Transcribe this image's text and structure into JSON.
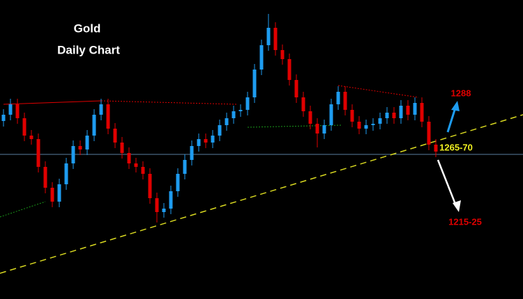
{
  "chart_data": {
    "type": "candlestick",
    "title": "Gold",
    "subtitle": "Daily Chart",
    "up_color": "#1e9cf0",
    "down_color": "#e00000",
    "ylim": [
      1215,
      1322.5
    ],
    "annotations": {
      "target_up": "1288",
      "support": "1265-70",
      "target_down": "1215-25"
    },
    "candles": [
      [
        1279,
        1283.25,
        1277,
        1281.25
      ],
      [
        1281.25,
        1287,
        1279.25,
        1285
      ],
      [
        1285,
        1287,
        1278,
        1280
      ],
      [
        1280,
        1282,
        1271.75,
        1273.75
      ],
      [
        1273.75,
        1275.75,
        1270.5,
        1272.5
      ],
      [
        1272.5,
        1274.5,
        1260.5,
        1262.5
      ],
      [
        1262.5,
        1264.5,
        1253,
        1255
      ],
      [
        1255,
        1257,
        1248,
        1250
      ],
      [
        1250,
        1258.25,
        1248,
        1256.25
      ],
      [
        1256.25,
        1265.75,
        1254.25,
        1263.75
      ],
      [
        1263.75,
        1272,
        1261.75,
        1270
      ],
      [
        1270,
        1272,
        1266.75,
        1268.75
      ],
      [
        1268.75,
        1275.75,
        1266.75,
        1273.75
      ],
      [
        1273.75,
        1283.25,
        1271.75,
        1281.25
      ],
      [
        1281.25,
        1287,
        1279.25,
        1285
      ],
      [
        1285,
        1287,
        1274.25,
        1276.25
      ],
      [
        1276.25,
        1278.25,
        1269.25,
        1271.25
      ],
      [
        1271.25,
        1273.25,
        1265.5,
        1267.5
      ],
      [
        1267.5,
        1269.5,
        1261.75,
        1263.75
      ],
      [
        1263.75,
        1265.75,
        1260.5,
        1262.5
      ],
      [
        1262.5,
        1264.5,
        1258,
        1260
      ],
      [
        1260,
        1262,
        1249.25,
        1251.25
      ],
      [
        1251.25,
        1253.25,
        1242.5,
        1246.25
      ],
      [
        1246.25,
        1249.5,
        1244.25,
        1247.5
      ],
      [
        1247.5,
        1255.75,
        1245.5,
        1253.75
      ],
      [
        1253.75,
        1262,
        1251.75,
        1260
      ],
      [
        1260,
        1267,
        1258,
        1265
      ],
      [
        1265,
        1272,
        1263,
        1270
      ],
      [
        1270,
        1274.5,
        1268,
        1272.5
      ],
      [
        1272.5,
        1274.5,
        1269.25,
        1271.25
      ],
      [
        1271.25,
        1275.75,
        1269.25,
        1273.75
      ],
      [
        1273.75,
        1279.5,
        1271.75,
        1277.5
      ],
      [
        1277.5,
        1282,
        1275.5,
        1280
      ],
      [
        1280,
        1284.5,
        1278,
        1282.5
      ],
      [
        1282.5,
        1285,
        1280.5,
        1283
      ],
      [
        1283,
        1289.5,
        1281,
        1287.5
      ],
      [
        1287.5,
        1299.5,
        1285.5,
        1297.5
      ],
      [
        1297.5,
        1308.25,
        1295.5,
        1306.25
      ],
      [
        1306.25,
        1317.5,
        1304.25,
        1312.5
      ],
      [
        1312.5,
        1314.5,
        1302.5,
        1304.5
      ],
      [
        1304.5,
        1306.5,
        1299.25,
        1301.25
      ],
      [
        1301.25,
        1303.25,
        1291.75,
        1293.75
      ],
      [
        1293.75,
        1295.75,
        1285.5,
        1287.5
      ],
      [
        1287.5,
        1289.5,
        1280.5,
        1282.5
      ],
      [
        1282.5,
        1284.5,
        1276,
        1278
      ],
      [
        1278,
        1280,
        1269.5,
        1274.5
      ],
      [
        1274.5,
        1279.5,
        1272.5,
        1277.5
      ],
      [
        1277.5,
        1287,
        1275.5,
        1285
      ],
      [
        1285,
        1291.5,
        1283,
        1289.5
      ],
      [
        1289.5,
        1291.5,
        1281,
        1283
      ],
      [
        1283,
        1285,
        1276.75,
        1278.75
      ],
      [
        1278.75,
        1280.75,
        1274.25,
        1276.25
      ],
      [
        1276.25,
        1279.5,
        1274.25,
        1277.5
      ],
      [
        1277.5,
        1280,
        1275.5,
        1278
      ],
      [
        1278,
        1282,
        1276,
        1280
      ],
      [
        1280,
        1284,
        1278,
        1282
      ],
      [
        1282,
        1284,
        1278,
        1280
      ],
      [
        1280,
        1286.5,
        1278,
        1284.5
      ],
      [
        1284.5,
        1286.5,
        1279.25,
        1281.25
      ],
      [
        1281.25,
        1287.5,
        1279.25,
        1285.5
      ],
      [
        1285.5,
        1287.5,
        1276.75,
        1278.75
      ],
      [
        1278.75,
        1280.75,
        1268.5,
        1270.5
      ],
      [
        1270.5,
        1272.5,
        1266,
        1268
      ]
    ]
  }
}
